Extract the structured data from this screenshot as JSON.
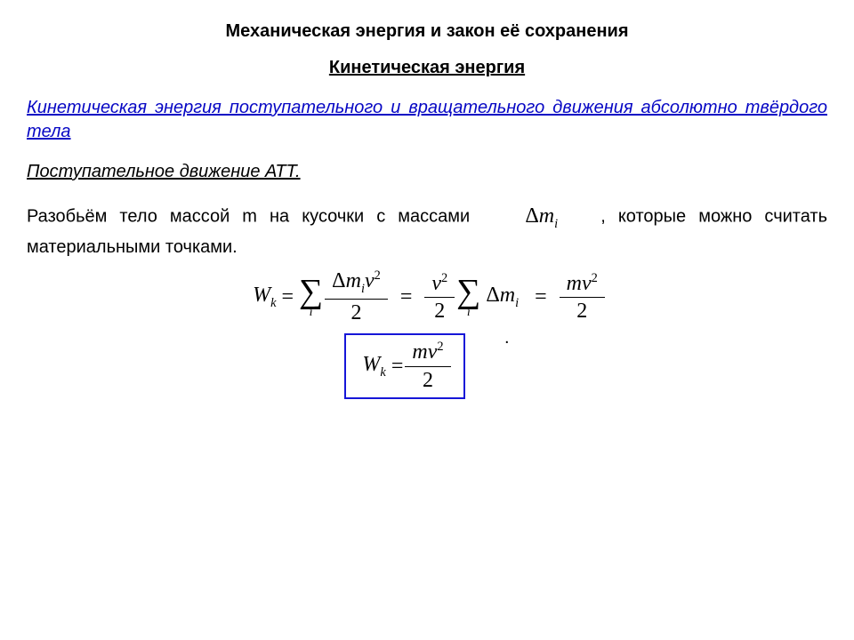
{
  "title": "Механическая энергия и закон её сохранения",
  "subtitle": "Кинетическая энергия",
  "intro_blue": "Кинетическая энергия поступательного и вращательного движения абсолютно твёрдого тела",
  "section": "Поступательное движение АТТ. ",
  "body_before": "Разобьём тело массой m на кусочки с массами ",
  "body_after": ", которые можно считать материальными точками.",
  "symbols": {
    "delta": "Δ",
    "m": "m",
    "i": "i",
    "W": "W",
    "k": "k",
    "v": "v",
    "two": "2",
    "sq": "2",
    "eq": "=",
    "sigma_sub": "i"
  },
  "colors": {
    "link_blue": "#0707c4",
    "box_border": "#1616d8",
    "text": "#000000",
    "bg": "#ffffff"
  }
}
